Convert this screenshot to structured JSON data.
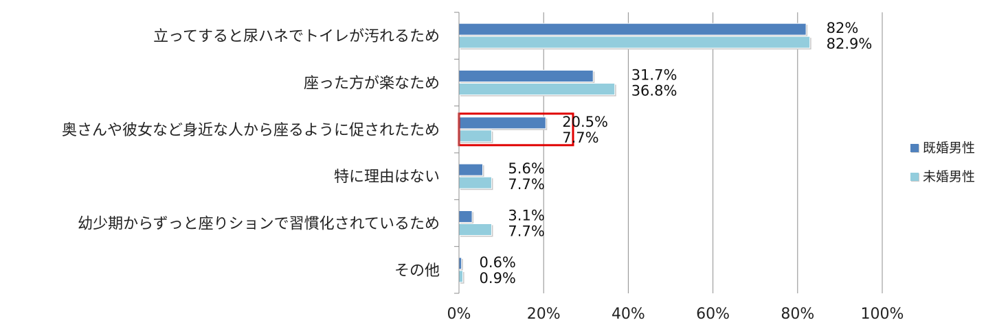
{
  "chart_data": {
    "type": "bar",
    "orientation": "horizontal",
    "categories": [
      "立ってすると尿ハネでトイレが汚れるため",
      "座った方が楽なため",
      "奥さんや彼女など身近な人から座るように促されたため",
      "特に理由はない",
      "幼少期からずっと座りションで習慣化されているため",
      "その他"
    ],
    "series": [
      {
        "name": "既婚男性",
        "color": "#4f81bd",
        "values": [
          82,
          31.7,
          20.5,
          5.6,
          3.1,
          0.6
        ],
        "labels": [
          "82%",
          "31.7%",
          "20.5%",
          "5.6%",
          "3.1%",
          "0.6%"
        ]
      },
      {
        "name": "未婚男性",
        "color": "#93cddd",
        "values": [
          82.9,
          36.8,
          7.7,
          7.7,
          7.7,
          0.9
        ],
        "labels": [
          "82.9%",
          "36.8%",
          "7.7%",
          "7.7%",
          "7.7%",
          "0.9%"
        ]
      }
    ],
    "xlim": [
      0,
      100
    ],
    "xticks": [
      "0%",
      "20%",
      "40%",
      "60%",
      "80%",
      "100%"
    ],
    "grid": true,
    "legend_position": "right",
    "highlight": {
      "category_index": 2,
      "color": "#e00000"
    }
  }
}
